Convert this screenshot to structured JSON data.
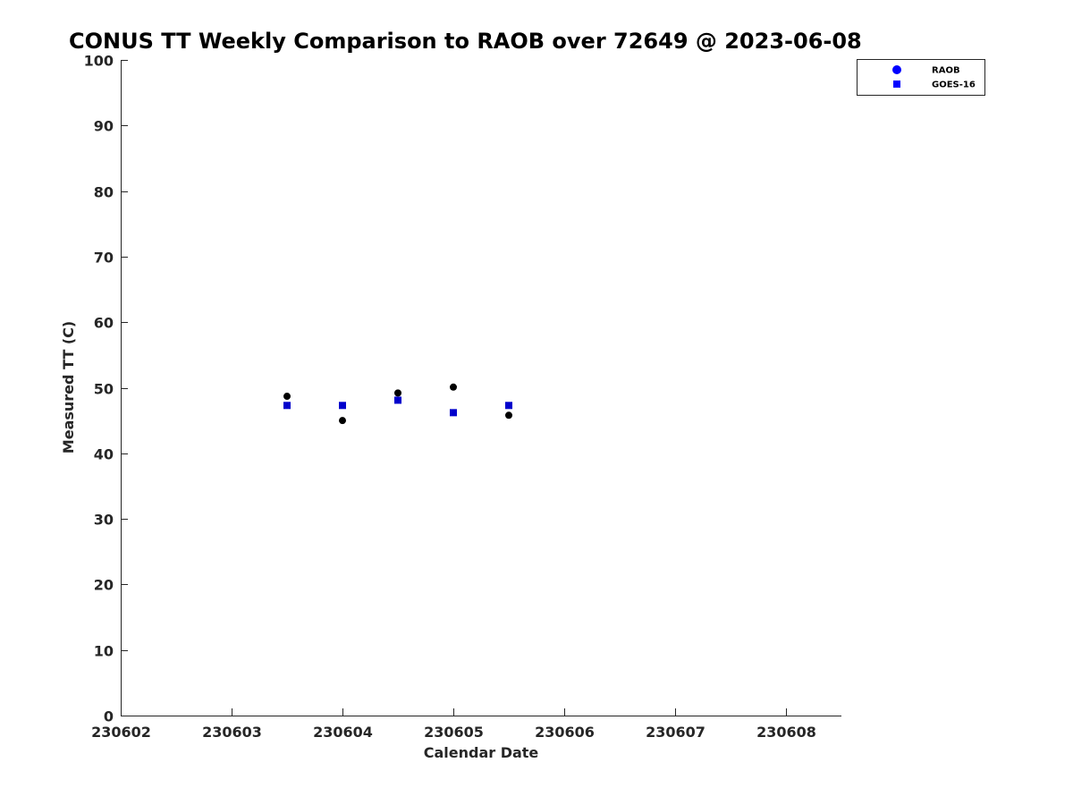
{
  "chart_data": {
    "type": "scatter",
    "title": "CONUS TT Weekly Comparison to RAOB over 72649 @ 2023-06-08",
    "xlabel": "Calendar Date",
    "ylabel": "Measured TT (C)",
    "xlim": [
      230602,
      230608.5
    ],
    "ylim": [
      0,
      100
    ],
    "x_ticks": [
      230602,
      230603,
      230604,
      230605,
      230606,
      230607,
      230608
    ],
    "x_tick_labels": [
      "230602",
      "230603",
      "230604",
      "230605",
      "230606",
      "230607",
      "230608"
    ],
    "y_ticks": [
      0,
      10,
      20,
      30,
      40,
      50,
      60,
      70,
      80,
      90,
      100
    ],
    "y_tick_labels": [
      "0",
      "10",
      "20",
      "30",
      "40",
      "50",
      "60",
      "70",
      "80",
      "90",
      "100"
    ],
    "grid": false,
    "legend_position": "top-right",
    "series": [
      {
        "name": "RAOB",
        "marker": "circle",
        "legend_color": "#0000ff",
        "color": "#000000",
        "x": [
          230603.5,
          230604.0,
          230604.5,
          230605.0,
          230605.5
        ],
        "y": [
          48.7,
          45.0,
          49.2,
          50.1,
          45.8
        ]
      },
      {
        "name": "GOES-16",
        "marker": "square",
        "legend_color": "#0000ff",
        "color": "#0000cc",
        "x": [
          230603.5,
          230604.0,
          230604.5,
          230605.0,
          230605.5
        ],
        "y": [
          47.3,
          47.3,
          48.1,
          46.2,
          47.3
        ]
      }
    ]
  }
}
